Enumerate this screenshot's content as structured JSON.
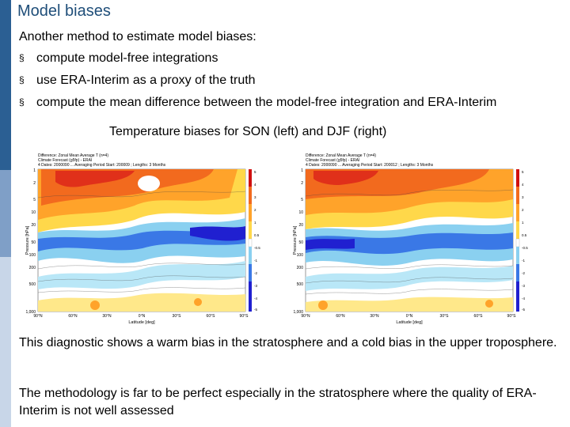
{
  "slide": {
    "title": "Model biases",
    "intro": "Another method to estimate model biases:",
    "bullet_marker": "§",
    "bullets": [
      "compute model-free integrations",
      "use ERA-Interim as a proxy of the truth",
      "compute the mean difference between the model-free integration and ERA-Interim"
    ],
    "figure_caption": "Temperature biases for SON (left) and DJF (right)",
    "conclusion_1": "This diagnostic shows a warm bias in the stratosphere and a cold bias in the upper troposphere.",
    "conclusion_2": "The methodology is far to be perfect especially in the stratosphere where the quality of ERA-Interim is not well assessed"
  },
  "figures": {
    "left": {
      "header_line_1": "Difference: Zonal Mean Average T (n=4)",
      "header_line_2": "Climate Forecast (g5fp) - ERAI",
      "header_line_3": "4 Dates: 2000090 ...  Averaging Period Start: 200009 ; Lengths: 3 Months",
      "ylabel": "Pressure [hPa]",
      "xlabel": "Latitude [deg]",
      "y_ticks": [
        "1",
        "2",
        "5",
        "10",
        "20",
        "50",
        "100",
        "200",
        "500",
        "1,000"
      ],
      "x_ticks": [
        "90°N",
        "60°N",
        "30°N",
        "0°N",
        "30°S",
        "60°S",
        "90°S"
      ],
      "colorbar_ticks": [
        "5",
        "4",
        "3",
        "2",
        "1",
        "0.5",
        "-0.5",
        "-1",
        "-2",
        "-3",
        "-4",
        "-5"
      ]
    },
    "right": {
      "header_line_1": "Difference: Zonal Mean Average T (n=4)",
      "header_line_2": "Climate Forecast (g5fp) - ERAI",
      "header_line_3": "4 Dates: 2000090 ...  Averaging Period Start: 200012 ; Lengths: 3 Months",
      "ylabel": "Pressure [hPa]",
      "xlabel": "Latitude [deg]",
      "y_ticks": [
        "1",
        "2",
        "5",
        "10",
        "20",
        "50",
        "100",
        "200",
        "500",
        "1,000"
      ],
      "x_ticks": [
        "90°N",
        "60°N",
        "30°N",
        "0°N",
        "30°S",
        "60°S",
        "90°S"
      ],
      "colorbar_ticks": [
        "5",
        "4",
        "3",
        "2",
        "1",
        "0.5",
        "-0.5",
        "-1",
        "-2",
        "-3",
        "-4",
        "-5"
      ]
    }
  },
  "colors": {
    "title": "#1f4e79",
    "warm_bias": "#e8401c",
    "cold_bias": "#2020d0",
    "side_bar": [
      "#1f4e79",
      "#2e6aa3",
      "#8fb0d4",
      "#c9d7e8"
    ]
  }
}
